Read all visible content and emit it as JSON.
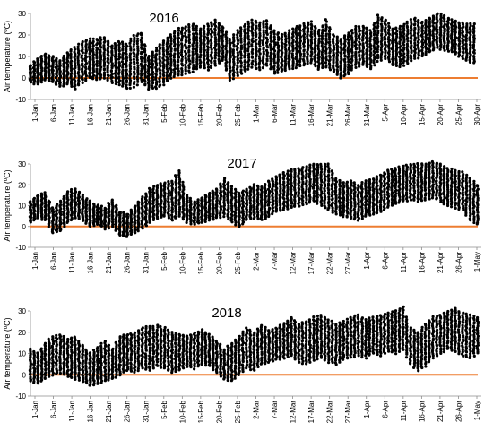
{
  "figure": {
    "shared_ylabel": "Air temperature (ºC)",
    "zero_line_color": "#ED7D31",
    "point_color": "#000000"
  },
  "chart_data": [
    {
      "type": "scatter",
      "title": "2016",
      "ylabel": "Air temperature (ºC)",
      "ylim": [
        -10,
        30
      ],
      "yticks": [
        -10,
        0,
        10,
        20,
        30
      ],
      "xlim": [
        "2016-01-01",
        "2016-05-02"
      ],
      "xtick_labels": [
        "1-Jan",
        "6-Jan",
        "11-Jan",
        "16-Jan",
        "21-Jan",
        "26-Jan",
        "31-Jan",
        "5-Feb",
        "10-Feb",
        "15-Feb",
        "20-Feb",
        "25-Feb",
        "1-Mar",
        "6-Mar",
        "11-Mar",
        "16-Mar",
        "21-Mar",
        "26-Mar",
        "31-Mar",
        "5-Apr",
        "10-Apr",
        "15-Apr",
        "20-Apr",
        "25-Apr",
        "30-Apr"
      ],
      "reference_line": 0,
      "daily_range": [
        {
          "date": "2016-01-01",
          "min": -2,
          "max": 6
        },
        {
          "date": "2016-01-03",
          "min": -3,
          "max": 9
        },
        {
          "date": "2016-01-05",
          "min": -1,
          "max": 11
        },
        {
          "date": "2016-01-07",
          "min": -2,
          "max": 10
        },
        {
          "date": "2016-01-09",
          "min": -4,
          "max": 8
        },
        {
          "date": "2016-01-11",
          "min": -3,
          "max": 12
        },
        {
          "date": "2016-01-13",
          "min": -5,
          "max": 14
        },
        {
          "date": "2016-01-15",
          "min": -2,
          "max": 17
        },
        {
          "date": "2016-01-17",
          "min": 0,
          "max": 18
        },
        {
          "date": "2016-01-19",
          "min": -1,
          "max": 18
        },
        {
          "date": "2016-01-21",
          "min": 0,
          "max": 19
        },
        {
          "date": "2016-01-23",
          "min": -2,
          "max": 15
        },
        {
          "date": "2016-01-25",
          "min": -3,
          "max": 17
        },
        {
          "date": "2016-01-27",
          "min": -5,
          "max": 16
        },
        {
          "date": "2016-01-29",
          "min": -4,
          "max": 20
        },
        {
          "date": "2016-01-31",
          "min": -2,
          "max": 21
        },
        {
          "date": "2016-02-02",
          "min": -5,
          "max": 10
        },
        {
          "date": "2016-02-04",
          "min": -5,
          "max": 14
        },
        {
          "date": "2016-02-06",
          "min": -3,
          "max": 17
        },
        {
          "date": "2016-02-08",
          "min": 0,
          "max": 20
        },
        {
          "date": "2016-02-10",
          "min": 1,
          "max": 23
        },
        {
          "date": "2016-02-12",
          "min": 2,
          "max": 24
        },
        {
          "date": "2016-02-14",
          "min": 3,
          "max": 25
        },
        {
          "date": "2016-02-16",
          "min": 5,
          "max": 23
        },
        {
          "date": "2016-02-18",
          "min": 4,
          "max": 25
        },
        {
          "date": "2016-02-20",
          "min": 6,
          "max": 27
        },
        {
          "date": "2016-02-22",
          "min": 8,
          "max": 24
        },
        {
          "date": "2016-02-24",
          "min": -1,
          "max": 18
        },
        {
          "date": "2016-02-26",
          "min": 1,
          "max": 22
        },
        {
          "date": "2016-02-28",
          "min": 3,
          "max": 25
        },
        {
          "date": "2016-03-01",
          "min": 5,
          "max": 27
        },
        {
          "date": "2016-03-03",
          "min": 4,
          "max": 26
        },
        {
          "date": "2016-03-05",
          "min": 6,
          "max": 27
        },
        {
          "date": "2016-03-07",
          "min": 2,
          "max": 22
        },
        {
          "date": "2016-03-09",
          "min": 3,
          "max": 20
        },
        {
          "date": "2016-03-11",
          "min": 4,
          "max": 22
        },
        {
          "date": "2016-03-13",
          "min": 5,
          "max": 24
        },
        {
          "date": "2016-03-15",
          "min": 6,
          "max": 25
        },
        {
          "date": "2016-03-17",
          "min": 7,
          "max": 26
        },
        {
          "date": "2016-03-19",
          "min": 4,
          "max": 22
        },
        {
          "date": "2016-03-21",
          "min": 5,
          "max": 27
        },
        {
          "date": "2016-03-23",
          "min": 3,
          "max": 20
        },
        {
          "date": "2016-03-25",
          "min": 0,
          "max": 18
        },
        {
          "date": "2016-03-27",
          "min": 2,
          "max": 21
        },
        {
          "date": "2016-03-29",
          "min": 5,
          "max": 24
        },
        {
          "date": "2016-03-31",
          "min": 6,
          "max": 24
        },
        {
          "date": "2016-04-02",
          "min": 4,
          "max": 22
        },
        {
          "date": "2016-04-04",
          "min": 8,
          "max": 29
        },
        {
          "date": "2016-04-06",
          "min": 9,
          "max": 27
        },
        {
          "date": "2016-04-08",
          "min": 6,
          "max": 23
        },
        {
          "date": "2016-04-10",
          "min": 5,
          "max": 24
        },
        {
          "date": "2016-04-12",
          "min": 7,
          "max": 26
        },
        {
          "date": "2016-04-14",
          "min": 9,
          "max": 28
        },
        {
          "date": "2016-04-16",
          "min": 10,
          "max": 26
        },
        {
          "date": "2016-04-18",
          "min": 12,
          "max": 28
        },
        {
          "date": "2016-04-20",
          "min": 14,
          "max": 30
        },
        {
          "date": "2016-04-22",
          "min": 13,
          "max": 29
        },
        {
          "date": "2016-04-24",
          "min": 12,
          "max": 27
        },
        {
          "date": "2016-04-26",
          "min": 10,
          "max": 26
        },
        {
          "date": "2016-04-28",
          "min": 8,
          "max": 25
        },
        {
          "date": "2016-04-30",
          "min": 7,
          "max": 25
        }
      ]
    },
    {
      "type": "scatter",
      "title": "2017",
      "ylabel": "Air temperature (ºC)",
      "ylim": [
        -10,
        30
      ],
      "yticks": [
        -10,
        0,
        10,
        20,
        30
      ],
      "xlim": [
        "2017-01-01",
        "2017-05-02"
      ],
      "xtick_labels": [
        "1-Jan",
        "6-Jan",
        "11-Jan",
        "16-Jan",
        "21-Jan",
        "26-Jan",
        "31-Jan",
        "5-Feb",
        "10-Feb",
        "15-Feb",
        "20-Feb",
        "25-Feb",
        "2-Mar",
        "7-Mar",
        "12-Mar",
        "17-Mar",
        "22-Mar",
        "27-Mar",
        "1-Apr",
        "6-Apr",
        "11-Apr",
        "16-Apr",
        "21-Apr",
        "26-Apr",
        "1-May"
      ],
      "reference_line": 0,
      "daily_range": [
        {
          "date": "2017-01-01",
          "min": 2,
          "max": 12
        },
        {
          "date": "2017-01-03",
          "min": 4,
          "max": 15
        },
        {
          "date": "2017-01-05",
          "min": 3,
          "max": 16
        },
        {
          "date": "2017-01-07",
          "min": -3,
          "max": 9
        },
        {
          "date": "2017-01-09",
          "min": -2,
          "max": 12
        },
        {
          "date": "2017-01-11",
          "min": 2,
          "max": 17
        },
        {
          "date": "2017-01-13",
          "min": 4,
          "max": 18
        },
        {
          "date": "2017-01-15",
          "min": 3,
          "max": 15
        },
        {
          "date": "2017-01-17",
          "min": 0,
          "max": 12
        },
        {
          "date": "2017-01-19",
          "min": 1,
          "max": 10
        },
        {
          "date": "2017-01-21",
          "min": -1,
          "max": 9
        },
        {
          "date": "2017-01-23",
          "min": 0,
          "max": 13
        },
        {
          "date": "2017-01-25",
          "min": -4,
          "max": 7
        },
        {
          "date": "2017-01-27",
          "min": -5,
          "max": 6
        },
        {
          "date": "2017-01-29",
          "min": -3,
          "max": 10
        },
        {
          "date": "2017-01-31",
          "min": -1,
          "max": 14
        },
        {
          "date": "2017-02-02",
          "min": 2,
          "max": 18
        },
        {
          "date": "2017-02-04",
          "min": 4,
          "max": 20
        },
        {
          "date": "2017-02-06",
          "min": 5,
          "max": 21
        },
        {
          "date": "2017-02-08",
          "min": 3,
          "max": 22
        },
        {
          "date": "2017-02-10",
          "min": 5,
          "max": 27
        },
        {
          "date": "2017-02-12",
          "min": 2,
          "max": 15
        },
        {
          "date": "2017-02-14",
          "min": 1,
          "max": 12
        },
        {
          "date": "2017-02-16",
          "min": 2,
          "max": 14
        },
        {
          "date": "2017-02-18",
          "min": 3,
          "max": 16
        },
        {
          "date": "2017-02-20",
          "min": 4,
          "max": 18
        },
        {
          "date": "2017-02-22",
          "min": 5,
          "max": 23
        },
        {
          "date": "2017-02-24",
          "min": 2,
          "max": 19
        },
        {
          "date": "2017-02-26",
          "min": 0,
          "max": 16
        },
        {
          "date": "2017-02-28",
          "min": 3,
          "max": 18
        },
        {
          "date": "2017-03-02",
          "min": 4,
          "max": 20
        },
        {
          "date": "2017-03-04",
          "min": 3,
          "max": 19
        },
        {
          "date": "2017-03-06",
          "min": 5,
          "max": 22
        },
        {
          "date": "2017-03-08",
          "min": 7,
          "max": 24
        },
        {
          "date": "2017-03-10",
          "min": 8,
          "max": 26
        },
        {
          "date": "2017-03-12",
          "min": 9,
          "max": 27
        },
        {
          "date": "2017-03-14",
          "min": 10,
          "max": 28
        },
        {
          "date": "2017-03-16",
          "min": 11,
          "max": 29
        },
        {
          "date": "2017-03-18",
          "min": 12,
          "max": 30
        },
        {
          "date": "2017-03-20",
          "min": 10,
          "max": 30
        },
        {
          "date": "2017-03-22",
          "min": 8,
          "max": 30
        },
        {
          "date": "2017-03-24",
          "min": 6,
          "max": 23
        },
        {
          "date": "2017-03-26",
          "min": 5,
          "max": 21
        },
        {
          "date": "2017-03-28",
          "min": 4,
          "max": 22
        },
        {
          "date": "2017-03-30",
          "min": 3,
          "max": 20
        },
        {
          "date": "2017-04-01",
          "min": 5,
          "max": 22
        },
        {
          "date": "2017-04-03",
          "min": 6,
          "max": 23
        },
        {
          "date": "2017-04-05",
          "min": 7,
          "max": 25
        },
        {
          "date": "2017-04-07",
          "min": 9,
          "max": 27
        },
        {
          "date": "2017-04-09",
          "min": 11,
          "max": 28
        },
        {
          "date": "2017-04-11",
          "min": 12,
          "max": 29
        },
        {
          "date": "2017-04-13",
          "min": 13,
          "max": 30
        },
        {
          "date": "2017-04-15",
          "min": 12,
          "max": 30
        },
        {
          "date": "2017-04-17",
          "min": 13,
          "max": 30
        },
        {
          "date": "2017-04-19",
          "min": 14,
          "max": 31
        },
        {
          "date": "2017-04-21",
          "min": 12,
          "max": 30
        },
        {
          "date": "2017-04-23",
          "min": 10,
          "max": 28
        },
        {
          "date": "2017-04-25",
          "min": 9,
          "max": 27
        },
        {
          "date": "2017-04-27",
          "min": 8,
          "max": 26
        },
        {
          "date": "2017-04-29",
          "min": 3,
          "max": 23
        },
        {
          "date": "2017-05-01",
          "min": 1,
          "max": 20
        }
      ]
    },
    {
      "type": "scatter",
      "title": "2018",
      "ylabel": "Air temperature (ºC)",
      "ylim": [
        -10,
        30
      ],
      "yticks": [
        -10,
        0,
        10,
        20,
        30
      ],
      "xlim": [
        "2018-01-01",
        "2018-05-02"
      ],
      "xtick_labels": [
        "1-Jan",
        "6-Jan",
        "11-Jan",
        "16-Jan",
        "21-Jan",
        "26-Jan",
        "31-Jan",
        "5-Feb",
        "10-Feb",
        "15-Feb",
        "20-Feb",
        "25-Feb",
        "2-Mar",
        "7-Mar",
        "12-Mar",
        "17-Mar",
        "22-Mar",
        "27-Mar",
        "1-Apr",
        "6-Apr",
        "11-Apr",
        "16-Apr",
        "21-Apr",
        "26-Apr",
        "1-May"
      ],
      "reference_line": 0,
      "daily_range": [
        {
          "date": "2018-01-01",
          "min": -3,
          "max": 12
        },
        {
          "date": "2018-01-03",
          "min": -4,
          "max": 10
        },
        {
          "date": "2018-01-05",
          "min": -2,
          "max": 15
        },
        {
          "date": "2018-01-07",
          "min": 0,
          "max": 18
        },
        {
          "date": "2018-01-09",
          "min": 1,
          "max": 19
        },
        {
          "date": "2018-01-11",
          "min": -1,
          "max": 17
        },
        {
          "date": "2018-01-13",
          "min": -2,
          "max": 18
        },
        {
          "date": "2018-01-15",
          "min": -3,
          "max": 14
        },
        {
          "date": "2018-01-17",
          "min": -5,
          "max": 10
        },
        {
          "date": "2018-01-19",
          "min": -4,
          "max": 13
        },
        {
          "date": "2018-01-21",
          "min": -3,
          "max": 16
        },
        {
          "date": "2018-01-23",
          "min": -2,
          "max": 12
        },
        {
          "date": "2018-01-25",
          "min": 0,
          "max": 18
        },
        {
          "date": "2018-01-27",
          "min": 2,
          "max": 19
        },
        {
          "date": "2018-01-29",
          "min": 1,
          "max": 20
        },
        {
          "date": "2018-01-31",
          "min": 3,
          "max": 22
        },
        {
          "date": "2018-02-02",
          "min": 2,
          "max": 23
        },
        {
          "date": "2018-02-04",
          "min": 4,
          "max": 23
        },
        {
          "date": "2018-02-06",
          "min": 3,
          "max": 22
        },
        {
          "date": "2018-02-08",
          "min": 1,
          "max": 20
        },
        {
          "date": "2018-02-10",
          "min": 2,
          "max": 19
        },
        {
          "date": "2018-02-12",
          "min": 4,
          "max": 18
        },
        {
          "date": "2018-02-14",
          "min": 3,
          "max": 20
        },
        {
          "date": "2018-02-16",
          "min": 5,
          "max": 21
        },
        {
          "date": "2018-02-18",
          "min": 4,
          "max": 19
        },
        {
          "date": "2018-02-20",
          "min": 1,
          "max": 16
        },
        {
          "date": "2018-02-22",
          "min": -2,
          "max": 12
        },
        {
          "date": "2018-02-24",
          "min": -3,
          "max": 15
        },
        {
          "date": "2018-02-26",
          "min": 0,
          "max": 18
        },
        {
          "date": "2018-02-28",
          "min": 3,
          "max": 22
        },
        {
          "date": "2018-03-02",
          "min": 2,
          "max": 20
        },
        {
          "date": "2018-03-04",
          "min": 5,
          "max": 23
        },
        {
          "date": "2018-03-06",
          "min": 6,
          "max": 21
        },
        {
          "date": "2018-03-08",
          "min": 7,
          "max": 22
        },
        {
          "date": "2018-03-10",
          "min": 8,
          "max": 24
        },
        {
          "date": "2018-03-12",
          "min": 9,
          "max": 27
        },
        {
          "date": "2018-03-14",
          "min": 6,
          "max": 24
        },
        {
          "date": "2018-03-16",
          "min": 5,
          "max": 25
        },
        {
          "date": "2018-03-18",
          "min": 7,
          "max": 27
        },
        {
          "date": "2018-03-20",
          "min": 8,
          "max": 28
        },
        {
          "date": "2018-03-22",
          "min": 6,
          "max": 26
        },
        {
          "date": "2018-03-24",
          "min": 5,
          "max": 24
        },
        {
          "date": "2018-03-26",
          "min": 7,
          "max": 25
        },
        {
          "date": "2018-03-28",
          "min": 8,
          "max": 27
        },
        {
          "date": "2018-03-30",
          "min": 9,
          "max": 28
        },
        {
          "date": "2018-04-01",
          "min": 8,
          "max": 26
        },
        {
          "date": "2018-04-03",
          "min": 10,
          "max": 27
        },
        {
          "date": "2018-04-05",
          "min": 9,
          "max": 28
        },
        {
          "date": "2018-04-07",
          "min": 11,
          "max": 29
        },
        {
          "date": "2018-04-09",
          "min": 10,
          "max": 30
        },
        {
          "date": "2018-04-11",
          "min": 12,
          "max": 32
        },
        {
          "date": "2018-04-13",
          "min": 5,
          "max": 22
        },
        {
          "date": "2018-04-15",
          "min": 2,
          "max": 20
        },
        {
          "date": "2018-04-17",
          "min": 4,
          "max": 24
        },
        {
          "date": "2018-04-19",
          "min": 8,
          "max": 27
        },
        {
          "date": "2018-04-21",
          "min": 10,
          "max": 28
        },
        {
          "date": "2018-04-23",
          "min": 12,
          "max": 30
        },
        {
          "date": "2018-04-25",
          "min": 11,
          "max": 31
        },
        {
          "date": "2018-04-27",
          "min": 9,
          "max": 29
        },
        {
          "date": "2018-04-29",
          "min": 8,
          "max": 28
        },
        {
          "date": "2018-05-01",
          "min": 10,
          "max": 27
        }
      ]
    }
  ]
}
